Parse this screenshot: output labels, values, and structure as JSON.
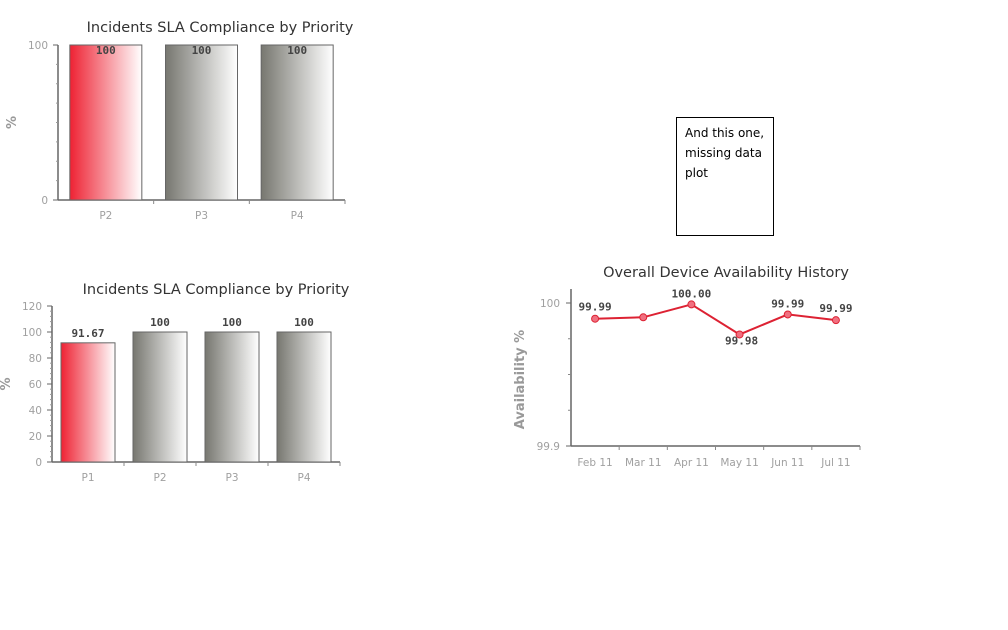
{
  "note": {
    "text": "And this one, missing data plot"
  },
  "chart_data": [
    {
      "type": "bar",
      "title": "Incidents SLA Compliance by Priority",
      "xlabel": "",
      "ylabel": "%",
      "categories": [
        "P2",
        "P3",
        "P4"
      ],
      "values": [
        100,
        100,
        100
      ],
      "data_labels": [
        "100",
        "100",
        "100"
      ],
      "ylim": [
        0,
        100
      ],
      "yticks": [
        0,
        100
      ],
      "bar_colors": [
        "#ee2233",
        "#777770",
        "#777770"
      ],
      "grid": false
    },
    {
      "type": "bar",
      "title": "Incidents SLA Compliance by Priority",
      "xlabel": "",
      "ylabel": "%",
      "categories": [
        "P1",
        "P2",
        "P3",
        "P4"
      ],
      "values": [
        91.67,
        100,
        100,
        100
      ],
      "data_labels": [
        "91.67",
        "100",
        "100",
        "100"
      ],
      "ylim": [
        0,
        120
      ],
      "yticks": [
        0,
        20,
        40,
        60,
        80,
        100,
        120
      ],
      "bar_colors": [
        "#ee2233",
        "#777770",
        "#777770",
        "#777770"
      ],
      "grid": false
    },
    {
      "type": "line",
      "title": "Overall Device Availability History",
      "xlabel": "",
      "ylabel": "Availability %",
      "categories": [
        "Feb 11",
        "Mar 11",
        "Apr 11",
        "May 11",
        "Jun 11",
        "Jul 11"
      ],
      "values": [
        99.989,
        99.99,
        99.999,
        99.978,
        99.992,
        99.988
      ],
      "data_labels": [
        "99.99",
        "99.99",
        "100.00",
        "99.98",
        "99.99",
        "99.99"
      ],
      "ylim": [
        99.9,
        100
      ],
      "yticks": [
        99.9,
        100
      ],
      "line_color": "#dd2233",
      "grid": false
    }
  ]
}
